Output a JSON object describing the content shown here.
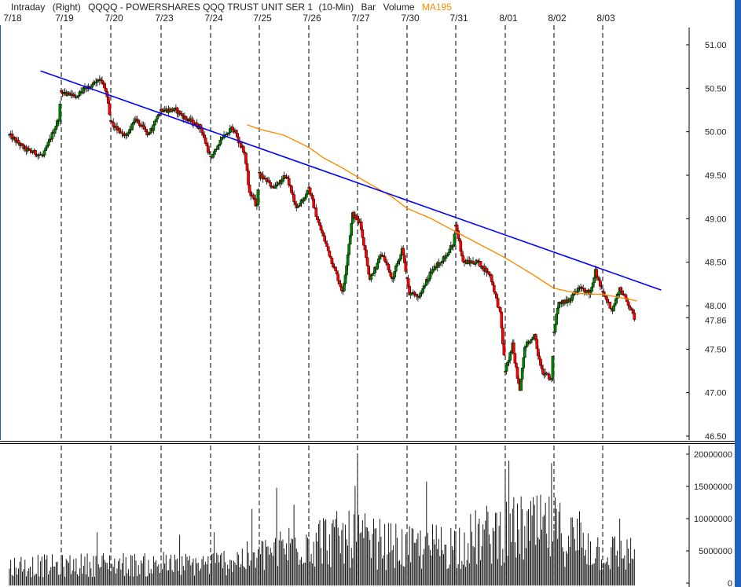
{
  "chart_data": {
    "type": "candlestick",
    "header": {
      "mode": "Intraday",
      "axis_side": "(Right)",
      "title": "QQQQ - POWERSHARES QQQ TRUST UNIT SER 1",
      "interval": "(10-Min)",
      "style": "Bar",
      "lower_label": "Volume",
      "ma_label": "MA195"
    },
    "x_labels": [
      "7/18",
      "7/19",
      "7/20",
      "7/23",
      "7/24",
      "7/25",
      "7/26",
      "7/27",
      "7/30",
      "7/31",
      "8/01",
      "8/02",
      "8/03"
    ],
    "price_axis": {
      "ticks": [
        "51.00",
        "50.50",
        "50.00",
        "49.50",
        "49.00",
        "48.50",
        "48.00",
        "47.50",
        "47.00",
        "46.50"
      ],
      "last_price_label": "47.86",
      "ylim": [
        46.5,
        51.0
      ]
    },
    "volume_axis": {
      "ticks": [
        "20000000",
        "15000000",
        "10000000",
        "5000000",
        "0"
      ],
      "ylim": [
        0,
        20000000
      ]
    },
    "price_anchors": [
      [
        0,
        49.96
      ],
      [
        0.3,
        49.8
      ],
      [
        0.65,
        49.72
      ],
      [
        0.95,
        50.15
      ],
      [
        1.0,
        50.45
      ],
      [
        1.3,
        50.42
      ],
      [
        1.55,
        50.52
      ],
      [
        1.8,
        50.62
      ],
      [
        1.95,
        50.35
      ],
      [
        2.0,
        50.1
      ],
      [
        2.3,
        49.95
      ],
      [
        2.5,
        50.15
      ],
      [
        2.75,
        49.95
      ],
      [
        3.0,
        50.25
      ],
      [
        3.3,
        50.25
      ],
      [
        3.5,
        50.15
      ],
      [
        3.8,
        50.05
      ],
      [
        4.0,
        49.7
      ],
      [
        4.2,
        49.9
      ],
      [
        4.45,
        50.05
      ],
      [
        4.7,
        49.75
      ],
      [
        4.8,
        49.3
      ],
      [
        4.95,
        49.15
      ],
      [
        5.0,
        49.5
      ],
      [
        5.3,
        49.35
      ],
      [
        5.55,
        49.5
      ],
      [
        5.75,
        49.1
      ],
      [
        6.0,
        49.35
      ],
      [
        6.2,
        48.95
      ],
      [
        6.45,
        48.55
      ],
      [
        6.7,
        48.15
      ],
      [
        6.9,
        49.05
      ],
      [
        7.05,
        48.95
      ],
      [
        7.25,
        48.3
      ],
      [
        7.5,
        48.6
      ],
      [
        7.7,
        48.3
      ],
      [
        7.9,
        48.65
      ],
      [
        8.05,
        48.15
      ],
      [
        8.25,
        48.1
      ],
      [
        8.5,
        48.4
      ],
      [
        8.75,
        48.55
      ],
      [
        8.95,
        48.7
      ],
      [
        9.0,
        48.95
      ],
      [
        9.15,
        48.5
      ],
      [
        9.45,
        48.5
      ],
      [
        9.7,
        48.35
      ],
      [
        9.9,
        47.9
      ],
      [
        10.0,
        47.25
      ],
      [
        10.15,
        47.55
      ],
      [
        10.3,
        47.0
      ],
      [
        10.4,
        47.55
      ],
      [
        10.6,
        47.65
      ],
      [
        10.75,
        47.25
      ],
      [
        10.95,
        47.15
      ],
      [
        11.0,
        47.7
      ],
      [
        11.1,
        48.05
      ],
      [
        11.3,
        48.05
      ],
      [
        11.5,
        48.2
      ],
      [
        11.75,
        48.15
      ],
      [
        11.85,
        48.4
      ],
      [
        12.0,
        48.15
      ],
      [
        12.2,
        47.95
      ],
      [
        12.35,
        48.2
      ],
      [
        12.55,
        48.0
      ],
      [
        12.65,
        47.86
      ]
    ],
    "ma195_anchors": [
      [
        4.75,
        50.08
      ],
      [
        5.0,
        50.03
      ],
      [
        5.5,
        49.96
      ],
      [
        6.0,
        49.82
      ],
      [
        6.3,
        49.7
      ],
      [
        6.7,
        49.58
      ],
      [
        7.0,
        49.48
      ],
      [
        7.4,
        49.35
      ],
      [
        7.7,
        49.25
      ],
      [
        8.0,
        49.12
      ],
      [
        8.5,
        49.0
      ],
      [
        9.0,
        48.85
      ],
      [
        9.5,
        48.7
      ],
      [
        10.0,
        48.55
      ],
      [
        10.5,
        48.38
      ],
      [
        11.0,
        48.2
      ],
      [
        11.5,
        48.14
      ],
      [
        12.0,
        48.13
      ],
      [
        12.3,
        48.1
      ],
      [
        12.75,
        48.05
      ]
    ],
    "trendline": {
      "from": [
        0.6,
        50.7
      ],
      "to": [
        13.2,
        48.18
      ]
    },
    "volume_shape": [
      [
        0,
        0.18
      ],
      [
        1,
        0.18
      ],
      [
        2,
        0.2
      ],
      [
        3,
        0.18
      ],
      [
        4,
        0.2
      ],
      [
        5,
        0.28
      ],
      [
        6,
        0.45
      ],
      [
        7,
        0.45
      ],
      [
        8,
        0.35
      ],
      [
        9,
        0.4
      ],
      [
        10,
        0.55
      ],
      [
        11,
        0.55
      ],
      [
        12,
        0.32
      ],
      [
        12.75,
        0.3
      ]
    ],
    "volume_spikes": [
      [
        7.0,
        0.98
      ],
      [
        10.0,
        0.85
      ],
      [
        10.95,
        0.93
      ],
      [
        12.1,
        0.2
      ]
    ],
    "colors": {
      "up": "#008000",
      "down": "#ff0000",
      "ma": "#ff8c00",
      "trendline": "#0000ff",
      "frame_blue": "#2060c0"
    }
  }
}
